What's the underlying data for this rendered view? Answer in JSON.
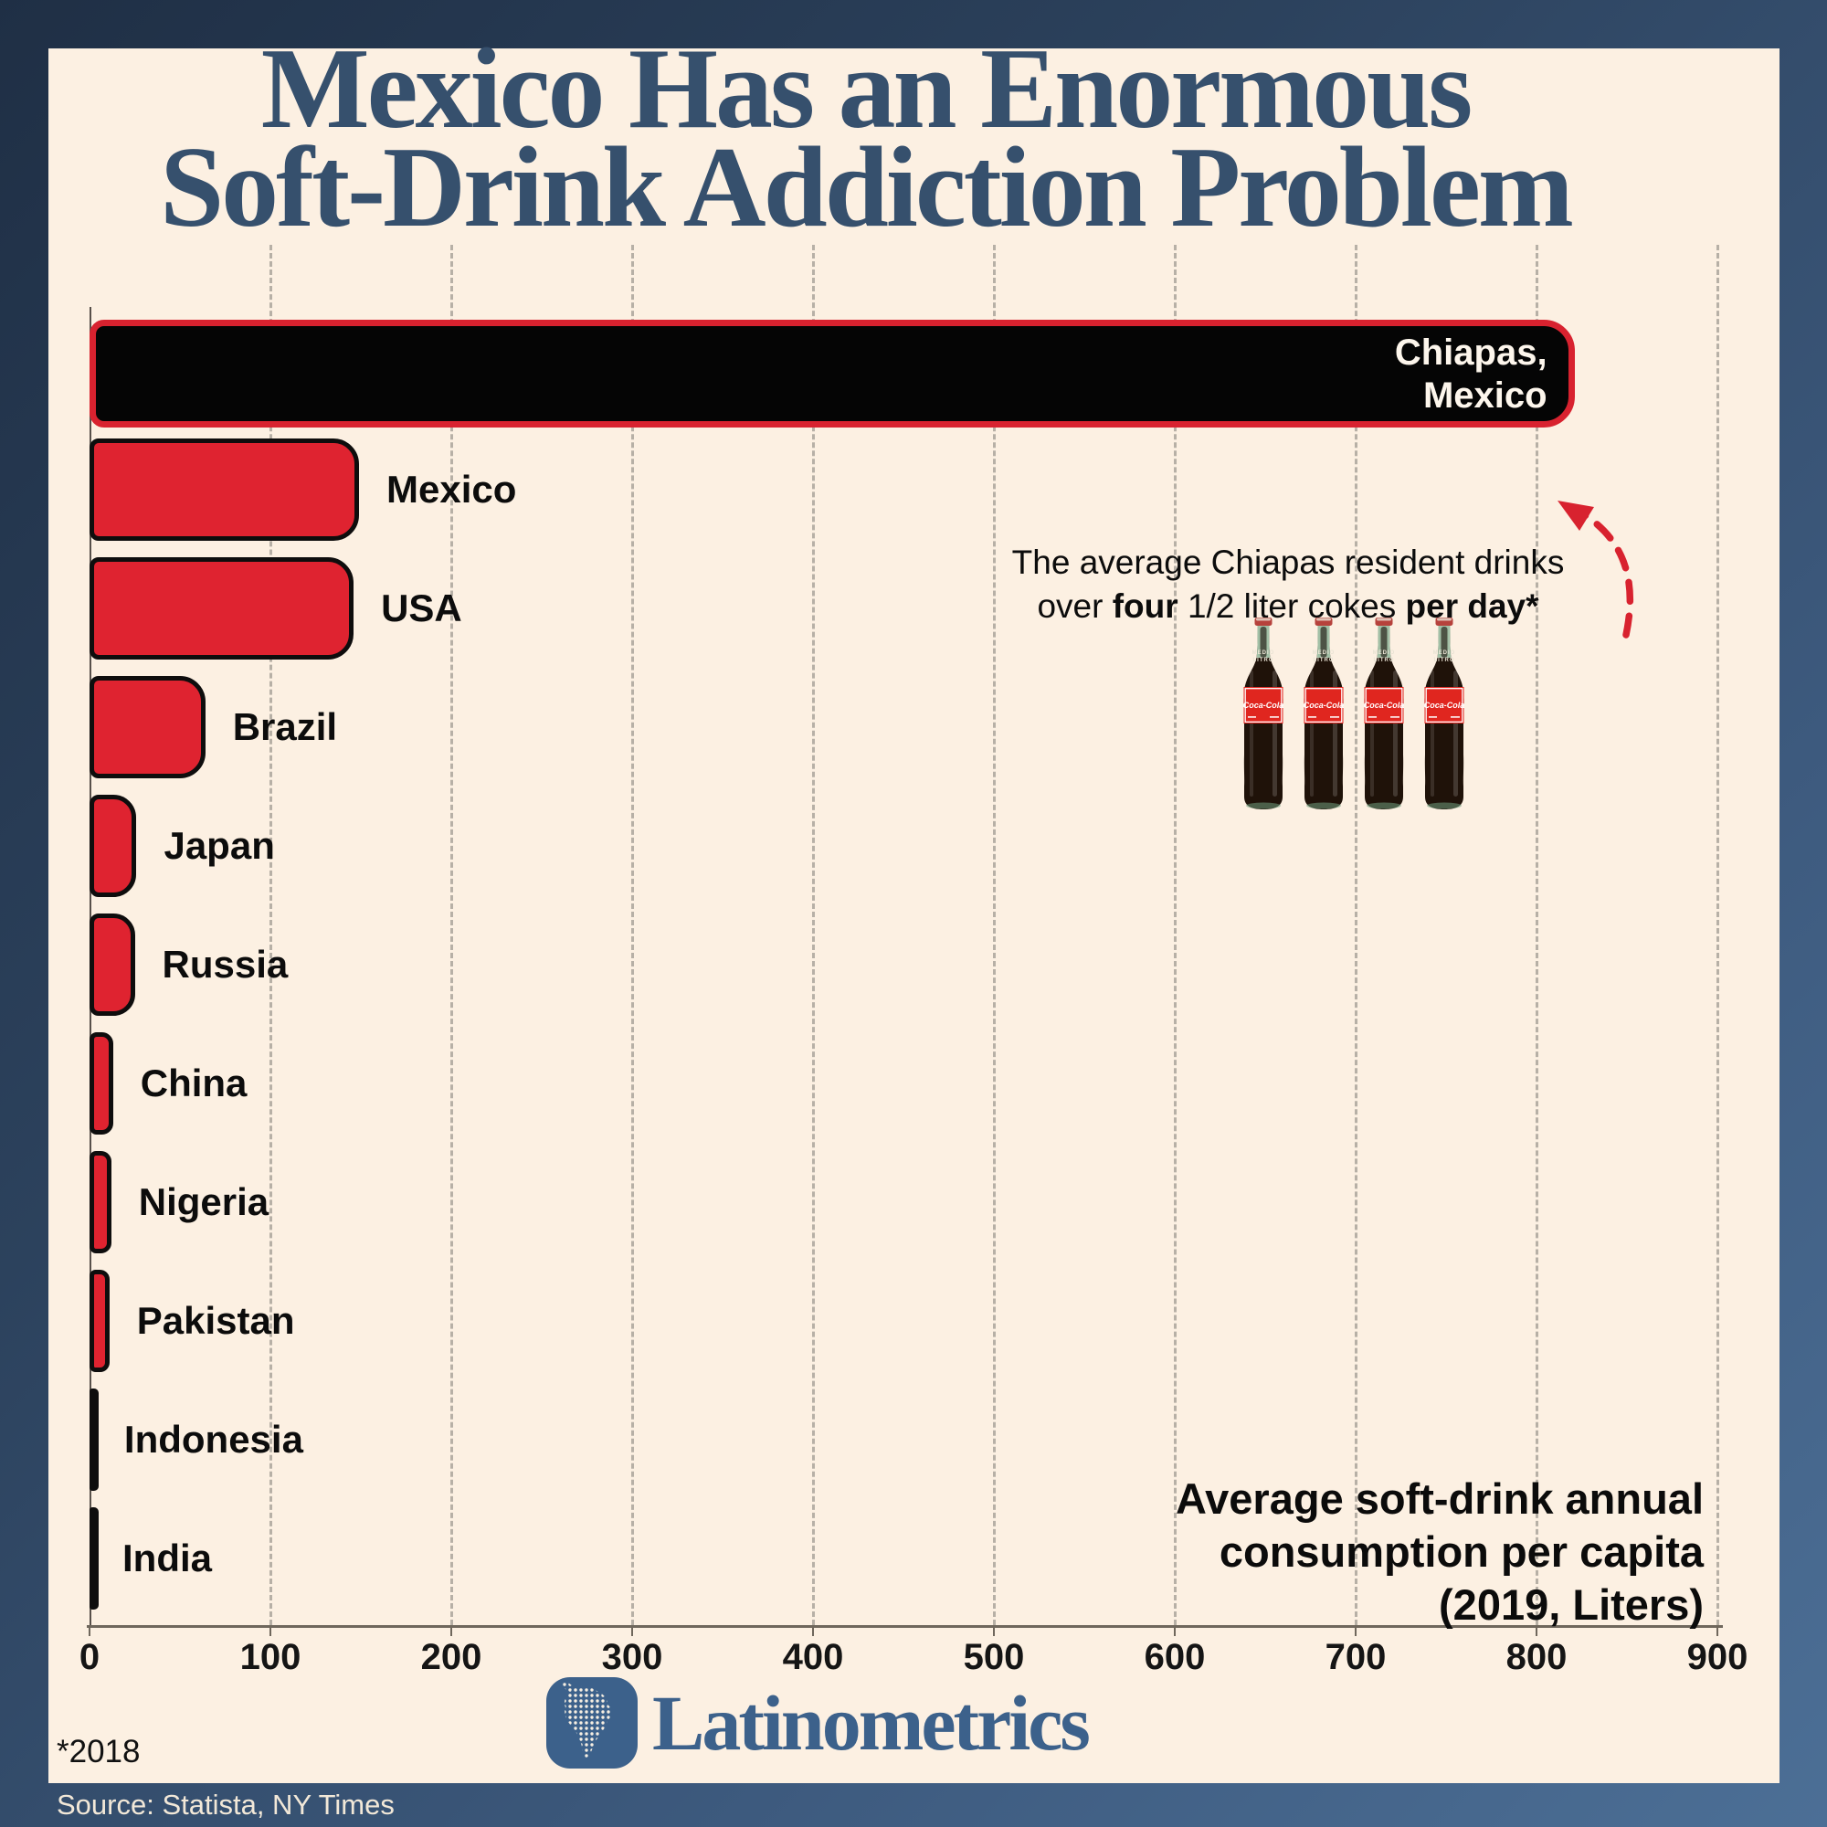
{
  "title": {
    "line1": "Mexico Has an Enormous",
    "line2": "Soft-Drink Addiction Problem"
  },
  "chart_data": {
    "type": "bar",
    "orientation": "horizontal",
    "title": "Mexico Has an Enormous Soft-Drink Addiction Problem",
    "xlabel": "Average soft-drink annual consumption per capita (2019, Liters)",
    "ylabel": "",
    "xlim": [
      0,
      900
    ],
    "x_ticks": [
      0,
      100,
      200,
      300,
      400,
      500,
      600,
      700,
      800,
      900
    ],
    "grid": "vertical-dashed",
    "legend_position": "none",
    "categories": [
      "Chiapas, Mexico",
      "Mexico",
      "USA",
      "Brazil",
      "Japan",
      "Russia",
      "China",
      "Nigeria",
      "Pakistan",
      "Indonesia",
      "India"
    ],
    "values": [
      821,
      149,
      146,
      64,
      26,
      25,
      13,
      12,
      11,
      4,
      3
    ],
    "bar_color": "#df2330",
    "bar_border_color": "#0e0d0d",
    "highlight_index": 0,
    "highlight_fill": "#050505",
    "highlight_border_color": "#d8222f",
    "highlight_label_lines": "Chiapas,\nMexico"
  },
  "annotation": {
    "line1": "The average Chiapas resident drinks",
    "l2a": "over ",
    "l2b": "four",
    "l2c": " 1/2 liter cokes ",
    "l2d": "per day*"
  },
  "axis_note": "Average soft-drink annual\nconsumption per capita\n(2019, Liters)",
  "footnote": "*2018",
  "source": "Source: Statista, NY Times",
  "logo": {
    "wordmark": "Latinometrics"
  },
  "bottles": {
    "count": 4,
    "neck_label_line1": "MEDIO",
    "neck_label_line2": "LITRO",
    "brand": "Coca-Cola"
  },
  "colors": {
    "card_background": "#fcf0e2",
    "frame_gradient_start": "#1f2f45",
    "frame_gradient_end": "#4c6f96",
    "title_color": "#36506d",
    "bar_red": "#df2330",
    "highlight_black": "#050505",
    "arrow_red": "#d8222f",
    "logo_blue": "#3c618b"
  }
}
